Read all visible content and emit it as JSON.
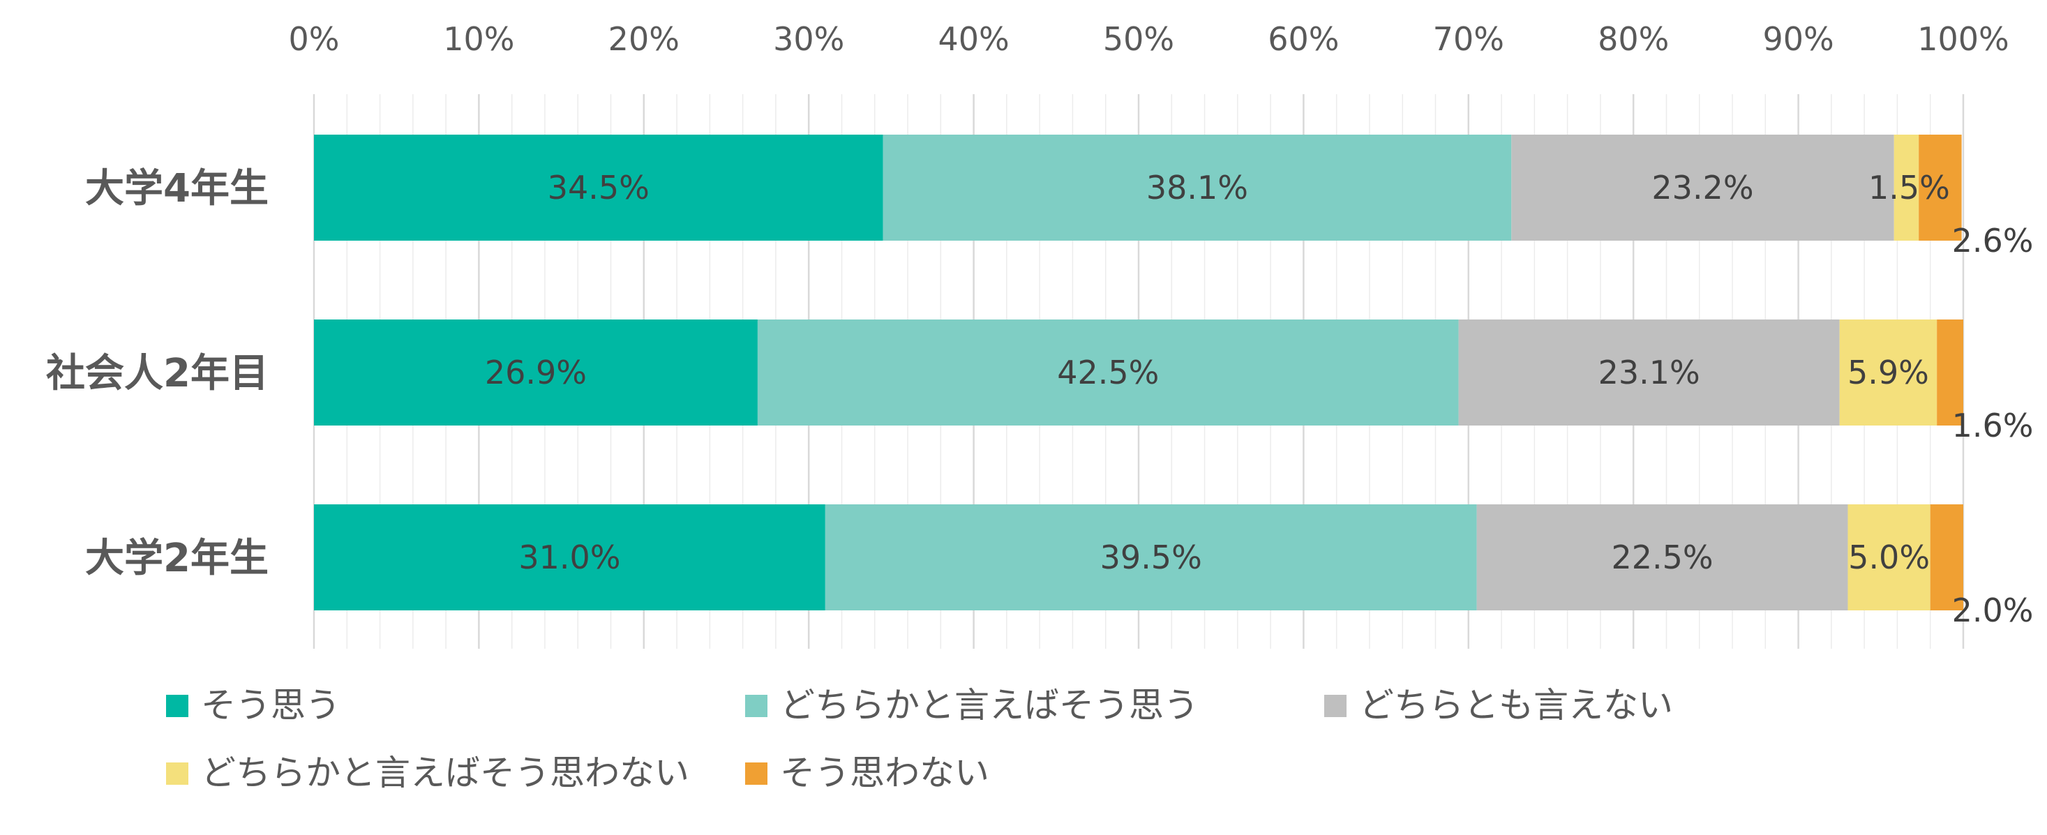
{
  "chart_data": {
    "type": "bar",
    "orientation": "horizontal",
    "stacked": "percent",
    "categories": [
      "大学4年生",
      "社会人2年目",
      "大学2年生"
    ],
    "series": [
      {
        "name": "そう思う",
        "color": "#00b8a3",
        "values": [
          34.5,
          26.9,
          31.0
        ],
        "labels": [
          "34.5%",
          "26.9%",
          "31.0%"
        ]
      },
      {
        "name": "どちらかと言えばそう思う",
        "color": "#7fcec4",
        "values": [
          38.1,
          42.5,
          39.5
        ],
        "labels": [
          "38.1%",
          "42.5%",
          "39.5%"
        ]
      },
      {
        "name": "どちらとも言えない",
        "color": "#bfbfbf",
        "values": [
          23.2,
          23.1,
          22.5
        ],
        "labels": [
          "23.2%",
          "23.1%",
          "22.5%"
        ]
      },
      {
        "name": "どちらかと言えばそう思わない",
        "color": "#f4e07c",
        "values": [
          1.5,
          5.9,
          5.0
        ],
        "labels": [
          "1.5%",
          "5.9%",
          "5.0%"
        ]
      },
      {
        "name": "そう思わない",
        "color": "#f0a033",
        "values": [
          2.6,
          1.6,
          2.0
        ],
        "labels": [
          "2.6%",
          "1.6%",
          "2.0%"
        ]
      }
    ],
    "xlim": [
      0,
      100
    ],
    "xticks": [
      "0%",
      "10%",
      "20%",
      "30%",
      "40%",
      "50%",
      "60%",
      "70%",
      "80%",
      "90%",
      "100%"
    ],
    "xaxis_position": "top",
    "grid": true,
    "legend": "bottom",
    "title": "",
    "xlabel": "",
    "ylabel": ""
  }
}
